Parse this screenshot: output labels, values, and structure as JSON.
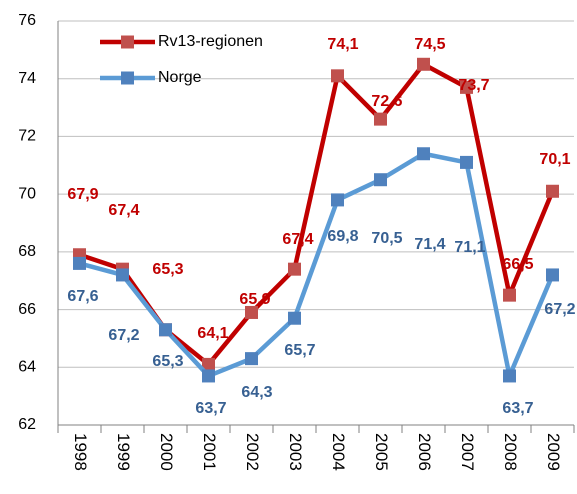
{
  "chart_data": {
    "type": "line",
    "categories": [
      "1998",
      "1999",
      "2000",
      "2001",
      "2002",
      "2003",
      "2004",
      "2005",
      "2006",
      "2007",
      "2008",
      "2009"
    ],
    "series": [
      {
        "name": "Rv13-regionen",
        "color": "#c00000",
        "marker_color": "#c0504d",
        "values": [
          67.9,
          67.4,
          65.3,
          64.1,
          65.9,
          67.4,
          74.1,
          72.6,
          74.5,
          73.7,
          66.5,
          70.1
        ],
        "value_labels": [
          "67,9",
          "67,4",
          "65,3",
          "64,1",
          "65,9",
          "67,4",
          "74,1",
          "72,6",
          "74,5",
          "73,7",
          "66,5",
          "70,1"
        ]
      },
      {
        "name": "Norge",
        "color": "#5b9bd5",
        "marker_color": "#4f81bd",
        "values": [
          67.6,
          67.2,
          65.3,
          63.7,
          64.3,
          65.7,
          69.8,
          70.5,
          71.4,
          71.1,
          63.7,
          67.2
        ],
        "value_labels": [
          "67,6",
          "67,2",
          "65,3",
          "63,7",
          "64,3",
          "65,7",
          "69,8",
          "70,5",
          "71,4",
          "71,1",
          "63,7",
          "67,2"
        ]
      }
    ],
    "ylim": [
      62,
      76
    ],
    "yticks": [
      62,
      64,
      66,
      68,
      70,
      72,
      74,
      76
    ],
    "grid": true
  }
}
